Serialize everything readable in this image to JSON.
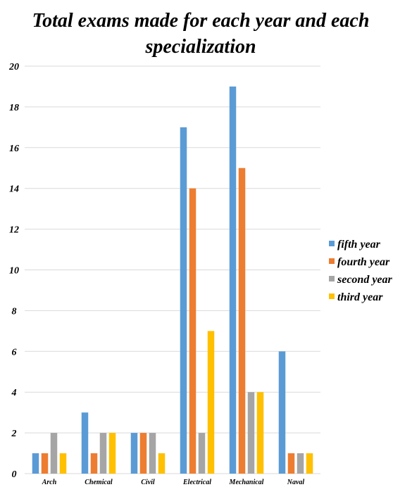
{
  "chart_data": {
    "type": "bar",
    "title_lines": [
      "Total exams made for each year and each",
      "specialization"
    ],
    "categories": [
      "Arch",
      "Chemical",
      "Civil",
      "Electrical",
      "Mechanical",
      "Naval"
    ],
    "series": [
      {
        "name": "fifth year",
        "color": "#5b9bd5",
        "values": [
          1,
          3,
          2,
          17,
          19,
          6
        ]
      },
      {
        "name": "fourth year",
        "color": "#ed7d31",
        "values": [
          1,
          1,
          2,
          14,
          15,
          1
        ]
      },
      {
        "name": "second year",
        "color": "#a5a5a5",
        "values": [
          2,
          2,
          2,
          2,
          4,
          1
        ]
      },
      {
        "name": "third year",
        "color": "#ffc000",
        "values": [
          1,
          2,
          1,
          7,
          4,
          1
        ]
      }
    ],
    "y_ticks": [
      "0",
      "2",
      "4",
      "6",
      "8",
      "10",
      "12",
      "14",
      "16",
      "18",
      "20"
    ],
    "ylim": [
      0,
      20
    ],
    "grid": true,
    "legend_position": "right"
  }
}
